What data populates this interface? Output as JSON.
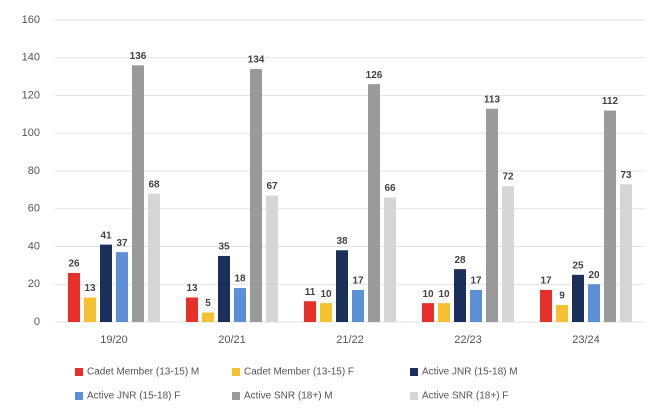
{
  "chart_data": {
    "type": "bar",
    "categories": [
      "19/20",
      "20/21",
      "21/22",
      "22/23",
      "23/24"
    ],
    "series": [
      {
        "name": "Cadet Member (13-15) M",
        "color": "#e8302a",
        "values": [
          26,
          13,
          11,
          10,
          17
        ]
      },
      {
        "name": "Cadet Member (13-15) F",
        "color": "#f7c02e",
        "values": [
          13,
          5,
          10,
          10,
          9
        ]
      },
      {
        "name": "Active JNR (15-18) M",
        "color": "#1b2f5b",
        "values": [
          41,
          35,
          38,
          28,
          25
        ]
      },
      {
        "name": "Active JNR (15-18) F",
        "color": "#5b8fd6",
        "values": [
          37,
          18,
          17,
          17,
          20
        ]
      },
      {
        "name": "Active SNR (18+) M",
        "color": "#9a9a9a",
        "values": [
          136,
          134,
          126,
          113,
          112
        ]
      },
      {
        "name": "Active SNR (18+) F",
        "color": "#d6d6d6",
        "values": [
          68,
          67,
          66,
          72,
          73
        ]
      }
    ],
    "ylim": [
      0,
      160
    ],
    "yticks": [
      0,
      20,
      40,
      60,
      80,
      100,
      120,
      140,
      160
    ],
    "grid": true,
    "legend": "bottom"
  }
}
